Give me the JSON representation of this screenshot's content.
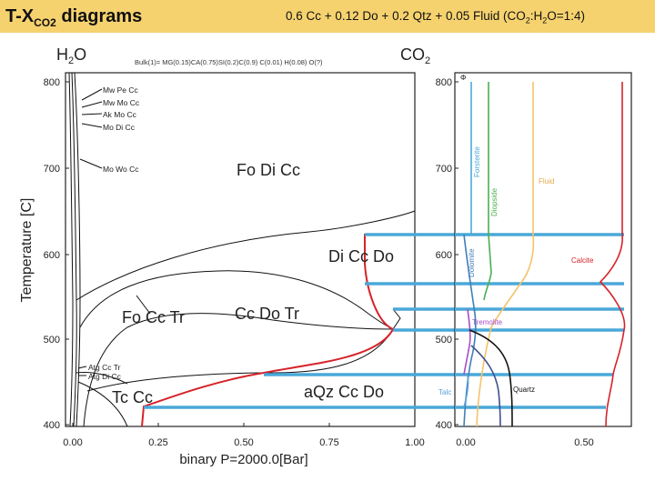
{
  "header": {
    "title_prefix": "T-X",
    "title_sub": "CO2",
    "title_suffix": " diagrams",
    "subtitle_parts": [
      "0.6 Cc + 0.12 Do + 0.2 Qtz + 0.05 Fluid (CO",
      "2",
      ":H",
      "2",
      "O=1:4)"
    ],
    "background_color": "#f6d26f"
  },
  "left_panel": {
    "top_left_label": "H",
    "top_left_sub": "2",
    "top_left_end": "O",
    "top_right_label": "CO",
    "top_right_sub": "2",
    "bulk_label": "Bulk(1)= MG(0.15)CA(0.75)SI(0.2)C(0.9) C(0.01) H(0.08) O(?)",
    "ylabel": "Temperature [C]",
    "xlabel": "binary P=2000.0[Bar]",
    "y_ticks": [
      "800",
      "700",
      "600",
      "500",
      "400"
    ],
    "x_ticks": [
      "0.00",
      "0.25",
      "0.50",
      "0.75",
      "1.00"
    ],
    "field_labels": {
      "fo_di_cc": "Fo Di Cc",
      "di_cc_do": "Di Cc Do",
      "fo_cc_tr": "Fo Cc Tr",
      "cc_do_tr": "Cc Do Tr",
      "tc_cc": "Tc Cc",
      "aqz_cc_do": "aQz Cc Do"
    },
    "small_labels": [
      "Mw Pe Cc",
      "Mw Mo Cc",
      "Ak Mo Cc",
      "Mo Di Cc",
      "Mo Wo Cc",
      "Atg Cc Tr",
      "Atg Di Cc"
    ]
  },
  "right_panel": {
    "y_ticks": [
      "800",
      "700",
      "600",
      "500",
      "400"
    ],
    "x_ticks": [
      "0.00",
      "0.50"
    ],
    "corner_symbol": "Φ",
    "phase_labels": {
      "forsterite": "Forsterite",
      "diopside": "Diopside",
      "fluid": "Fluid",
      "dolomite": "Dolomite",
      "calcite": "Calcite",
      "tremolite": "Tremolite",
      "talc": "Talc",
      "quartz": "Quartz"
    },
    "phase_colors": {
      "forsterite": "#4aa8d8",
      "diopside": "#4caf50",
      "fluid": "#f4c36a",
      "dolomite": "#3f7fb8",
      "calcite": "#d6232a",
      "tremolite": "#a64ec6",
      "talc": "#5aa0d8",
      "quartz": "#111111"
    }
  },
  "highlight_color": "#4aa8d8",
  "reaction_color": "#d6232a"
}
